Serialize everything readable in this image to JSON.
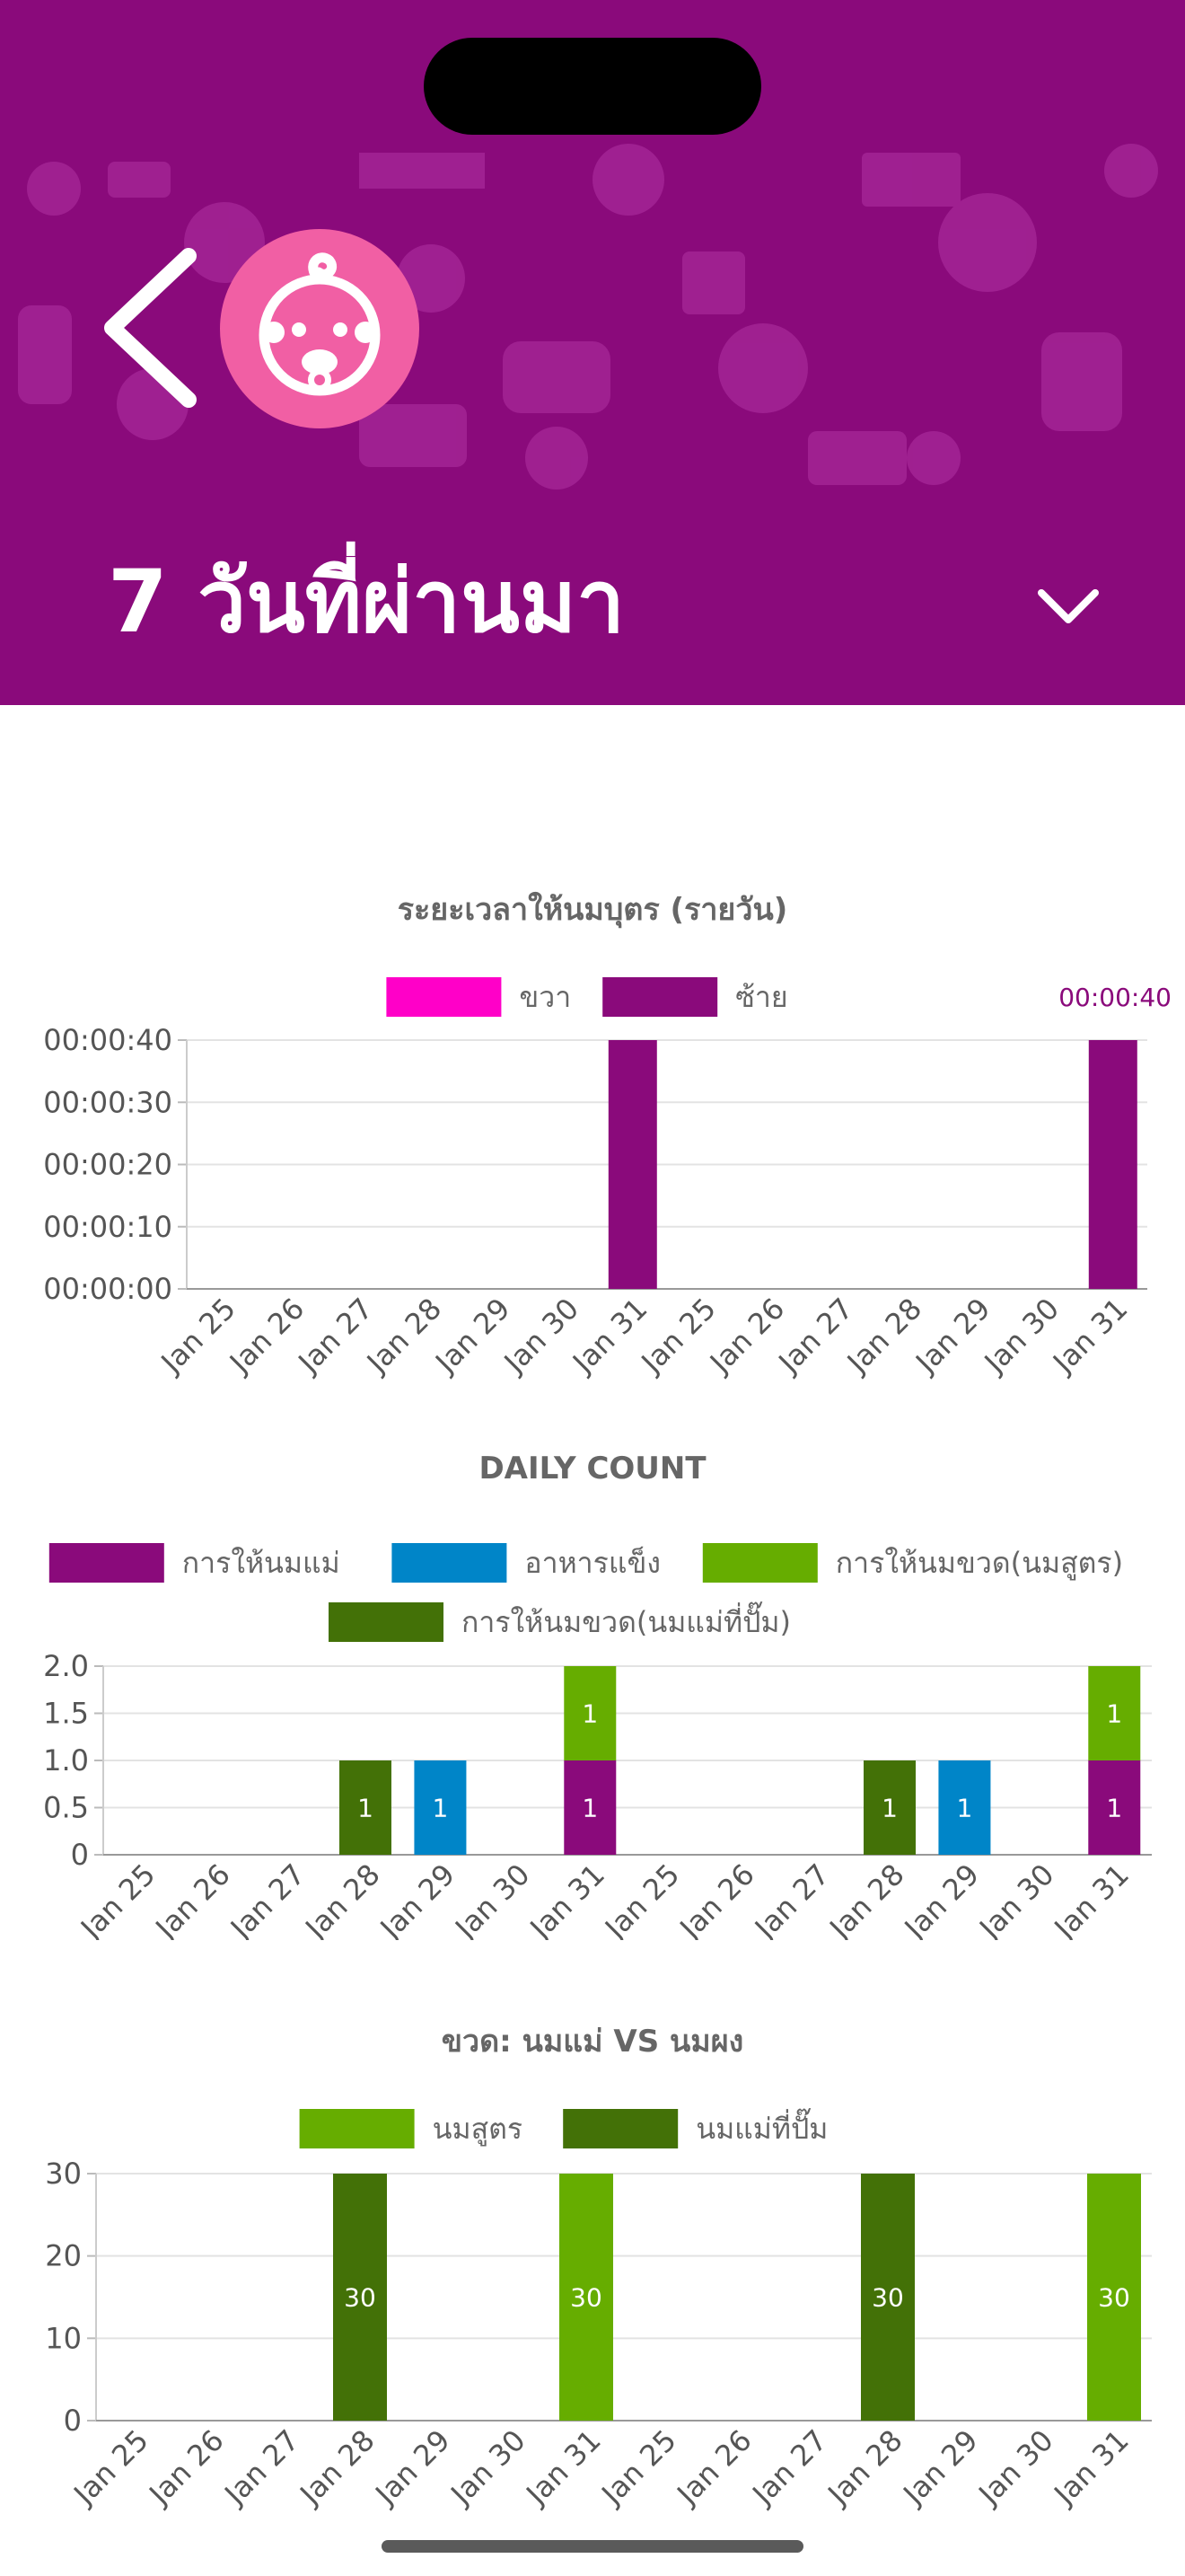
{
  "header": {
    "title": "7 วันที่ผ่านมา"
  },
  "colors": {
    "header_bg": "#8a0a7b",
    "avatar_bg": "#f15fa4",
    "right_breast": "#ff00c8",
    "left_breast": "#8a0a7b",
    "breastfeeding": "#8a0a7b",
    "solids": "#0085c8",
    "formula": "#66ad00",
    "pumped": "#437107"
  },
  "charts": [
    {
      "title": "ระยะเวลาให้นมบุตร (รายวัน)",
      "type": "bar",
      "categories": [
        "Jan 25",
        "Jan 26",
        "Jan 27",
        "Jan 28",
        "Jan 29",
        "Jan 30",
        "Jan 31",
        "Jan 25",
        "Jan 26",
        "Jan 27",
        "Jan 28",
        "Jan 29",
        "Jan 30",
        "Jan 31"
      ],
      "series": [
        {
          "name": "ขวา",
          "color": "#ff00c8",
          "values": [
            0,
            0,
            0,
            0,
            0,
            0,
            0,
            0,
            0,
            0,
            0,
            0,
            0,
            0
          ]
        },
        {
          "name": "ซ้าย",
          "color": "#8a0a7b",
          "values": [
            0,
            0,
            0,
            0,
            0,
            0,
            40,
            0,
            0,
            0,
            0,
            0,
            0,
            40
          ]
        }
      ],
      "yticks": [
        "00:00:00",
        "00:00:10",
        "00:00:20",
        "00:00:30",
        "00:00:40"
      ],
      "ymax": 40,
      "annotation": "00:00:40"
    },
    {
      "title": "DAILY COUNT",
      "type": "bar",
      "stacked": true,
      "categories": [
        "Jan 25",
        "Jan 26",
        "Jan 27",
        "Jan 28",
        "Jan 29",
        "Jan 30",
        "Jan 31",
        "Jan 25",
        "Jan 26",
        "Jan 27",
        "Jan 28",
        "Jan 29",
        "Jan 30",
        "Jan 31"
      ],
      "series": [
        {
          "name": "การให้นมแม่",
          "color": "#8a0a7b",
          "values": [
            0,
            0,
            0,
            0,
            0,
            0,
            1,
            0,
            0,
            0,
            0,
            0,
            0,
            1
          ]
        },
        {
          "name": "อาหารแข็ง",
          "color": "#0085c8",
          "values": [
            0,
            0,
            0,
            0,
            1,
            0,
            0,
            0,
            0,
            0,
            0,
            1,
            0,
            0
          ]
        },
        {
          "name": "การให้นมขวด(นมสูตร)",
          "color": "#66ad00",
          "values": [
            0,
            0,
            0,
            0,
            0,
            0,
            1,
            0,
            0,
            0,
            0,
            0,
            0,
            1
          ]
        },
        {
          "name": "การให้นมขวด(นมแม่ที่ปั๊ม)",
          "color": "#437107",
          "values": [
            0,
            0,
            0,
            1,
            0,
            0,
            0,
            0,
            0,
            0,
            1,
            0,
            0,
            0
          ]
        }
      ],
      "yticks": [
        "0",
        "0.5",
        "1.0",
        "1.5",
        "2.0"
      ],
      "ymax": 2
    },
    {
      "title": "ขวด: นมแม่ VS นมผง",
      "type": "bar",
      "categories": [
        "Jan 25",
        "Jan 26",
        "Jan 27",
        "Jan 28",
        "Jan 29",
        "Jan 30",
        "Jan 31",
        "Jan 25",
        "Jan 26",
        "Jan 27",
        "Jan 28",
        "Jan 29",
        "Jan 30",
        "Jan 31"
      ],
      "series": [
        {
          "name": "นมสูตร",
          "color": "#66ad00",
          "values": [
            0,
            0,
            0,
            0,
            0,
            0,
            30,
            0,
            0,
            0,
            0,
            0,
            0,
            30
          ]
        },
        {
          "name": "นมแม่ที่ปั๊ม",
          "color": "#437107",
          "values": [
            0,
            0,
            0,
            30,
            0,
            0,
            0,
            0,
            0,
            0,
            30,
            0,
            0,
            0
          ]
        }
      ],
      "yticks": [
        "0",
        "10",
        "20",
        "30"
      ],
      "ymax": 30
    }
  ]
}
